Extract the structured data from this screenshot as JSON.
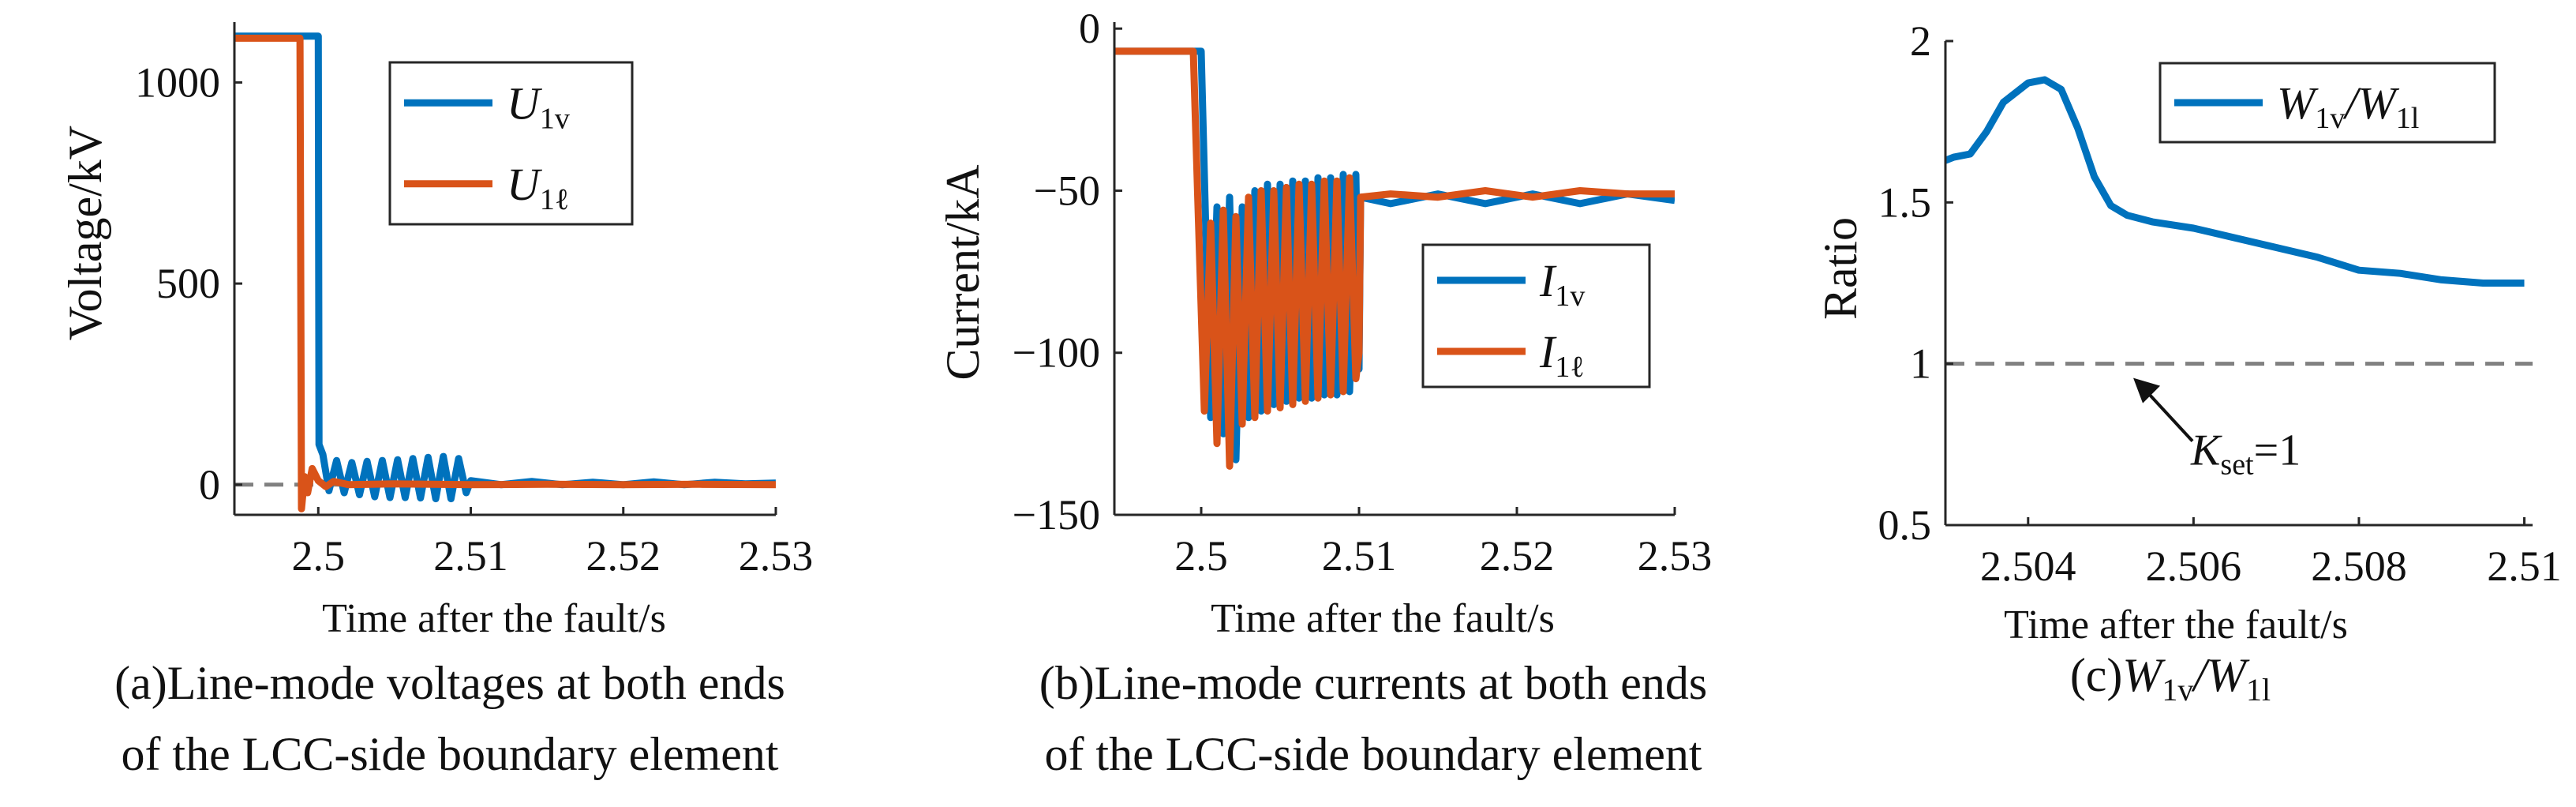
{
  "colors": {
    "blue": "#0072BD",
    "orange": "#D95319",
    "gray": "#808080",
    "axis": "#262626"
  },
  "chart_data": [
    {
      "type": "line",
      "panel": "a",
      "caption": [
        "(a)Line-mode voltages at both ends",
        "of the LCC-side boundary element"
      ],
      "xlabel": "Time after the fault/s",
      "ylabel": "Voltage/kV",
      "xlim": [
        2.4945,
        2.53
      ],
      "ylim": [
        -75,
        1150
      ],
      "xticks": [
        2.5,
        2.51,
        2.52,
        2.53
      ],
      "xtick_labels": [
        "2.5",
        "2.51",
        "2.52",
        "2.53"
      ],
      "yticks": [
        0,
        500,
        1000
      ],
      "ytick_labels": [
        "0",
        "500",
        "1000"
      ],
      "legend": {
        "position": "top-right",
        "entries": [
          {
            "base": "U",
            "sub": "1v"
          },
          {
            "base": "U",
            "sub": "1ℓ"
          }
        ]
      },
      "reference_line": {
        "y": 0,
        "style": "dashed"
      },
      "series": [
        {
          "color_key": "blue",
          "x": [
            2.4945,
            2.5,
            2.50005,
            2.5003,
            2.5007,
            2.5012,
            2.5017,
            2.5022,
            2.5027,
            2.5032,
            2.5037,
            2.5042,
            2.5047,
            2.5052,
            2.5057,
            2.5062,
            2.5067,
            2.5072,
            2.5077,
            2.5082,
            2.5087,
            2.5092,
            2.5097,
            2.51,
            2.512,
            2.514,
            2.516,
            2.518,
            2.52,
            2.522,
            2.524,
            2.526,
            2.528,
            2.53
          ],
          "y": [
            1115,
            1115,
            100,
            75,
            -15,
            60,
            -20,
            55,
            -25,
            58,
            -30,
            60,
            -32,
            62,
            -32,
            65,
            -33,
            68,
            -35,
            70,
            -35,
            65,
            -20,
            10,
            0,
            8,
            0,
            6,
            0,
            7,
            0,
            6,
            2,
            4
          ]
        },
        {
          "color_key": "orange",
          "x": [
            2.4945,
            2.4988,
            2.4989,
            2.4991,
            2.4993,
            2.4996,
            2.5,
            2.5005,
            2.501,
            2.502,
            2.505,
            2.51,
            2.515,
            2.52,
            2.525,
            2.53
          ],
          "y": [
            1110,
            1110,
            -60,
            20,
            -20,
            40,
            10,
            -5,
            8,
            0,
            2,
            0,
            1,
            0,
            1,
            0
          ]
        }
      ]
    },
    {
      "type": "line",
      "panel": "b",
      "caption": [
        "(b)Line-mode currents at both ends",
        "of the LCC-side boundary element"
      ],
      "xlabel": "Time after the fault/s",
      "ylabel": "Current/kA",
      "xlim": [
        2.4945,
        2.53
      ],
      "ylim": [
        -150,
        2
      ],
      "xticks": [
        2.5,
        2.51,
        2.52,
        2.53
      ],
      "xtick_labels": [
        "2.5",
        "2.51",
        "2.52",
        "2.53"
      ],
      "yticks": [
        -150,
        -100,
        -50,
        0
      ],
      "ytick_labels": [
        "−150",
        "−100",
        "−50",
        "0"
      ],
      "legend": {
        "position": "center-right",
        "entries": [
          {
            "base": "I",
            "sub": "1v"
          },
          {
            "base": "I",
            "sub": "1ℓ"
          }
        ]
      },
      "series": [
        {
          "color_key": "blue",
          "x": [
            2.4945,
            2.5,
            2.5002,
            2.5006,
            2.501,
            2.5014,
            2.5018,
            2.5022,
            2.5026,
            2.503,
            2.5034,
            2.5038,
            2.5042,
            2.5046,
            2.505,
            2.5054,
            2.5058,
            2.5062,
            2.5066,
            2.507,
            2.5074,
            2.5078,
            2.5082,
            2.5086,
            2.509,
            2.5094,
            2.5098,
            2.51,
            2.5101,
            2.512,
            2.515,
            2.518,
            2.521,
            2.524,
            2.527,
            2.53
          ],
          "y": [
            -7,
            -7,
            -45,
            -120,
            -55,
            -125,
            -52,
            -133,
            -55,
            -120,
            -50,
            -118,
            -48,
            -116,
            -48,
            -115,
            -47,
            -114,
            -47,
            -114,
            -46,
            -113,
            -46,
            -113,
            -45,
            -112,
            -45,
            -105,
            -52,
            -54,
            -51,
            -54,
            -51,
            -54,
            -51,
            -53
          ]
        },
        {
          "color_key": "orange",
          "x": [
            2.4945,
            2.4995,
            2.4998,
            2.5002,
            2.5006,
            2.501,
            2.5014,
            2.5018,
            2.5022,
            2.5026,
            2.503,
            2.5034,
            2.5038,
            2.5042,
            2.5046,
            2.505,
            2.5054,
            2.5058,
            2.5062,
            2.5066,
            2.507,
            2.5074,
            2.5078,
            2.5082,
            2.5086,
            2.509,
            2.5094,
            2.5098,
            2.51,
            2.5101,
            2.512,
            2.515,
            2.518,
            2.521,
            2.524,
            2.527,
            2.53
          ],
          "y": [
            -7,
            -7,
            -55,
            -118,
            -60,
            -128,
            -56,
            -135,
            -58,
            -122,
            -52,
            -120,
            -50,
            -118,
            -50,
            -117,
            -49,
            -116,
            -48,
            -115,
            -48,
            -114,
            -47,
            -113,
            -47,
            -112,
            -46,
            -108,
            -100,
            -52,
            -51,
            -52,
            -50,
            -52,
            -50,
            -51,
            -51
          ]
        }
      ]
    },
    {
      "type": "line",
      "panel": "c",
      "caption": [
        "(c)",
        "W",
        "1v",
        "/W",
        "1l"
      ],
      "xlabel": "Time after the fault/s",
      "ylabel": "Ratio",
      "xlim": [
        2.503,
        2.5101
      ],
      "ylim": [
        0.5,
        2
      ],
      "xticks": [
        2.504,
        2.506,
        2.508,
        2.51
      ],
      "xtick_labels": [
        "2.504",
        "2.506",
        "2.508",
        "2.51"
      ],
      "yticks": [
        0.5,
        1,
        1.5,
        2
      ],
      "ytick_labels": [
        "0.5",
        "1",
        "1.5",
        "2"
      ],
      "legend": {
        "position": "top-right",
        "entries": [
          {
            "parts": [
              "W",
              "1v",
              "/W",
              "1l"
            ]
          }
        ]
      },
      "reference_line": {
        "y": 1,
        "style": "dashed"
      },
      "annotation": {
        "base": "K",
        "sub": "set",
        "text": "=1",
        "arrow_to": [
          2.5051,
          1.0
        ]
      },
      "series": [
        {
          "color_key": "blue",
          "x": [
            2.503,
            2.5031,
            2.5033,
            2.5035,
            2.5037,
            2.504,
            2.5042,
            2.5044,
            2.5046,
            2.5048,
            2.505,
            2.5052,
            2.5055,
            2.506,
            2.5065,
            2.507,
            2.5075,
            2.508,
            2.5085,
            2.509,
            2.5095,
            2.51
          ],
          "y": [
            1.63,
            1.64,
            1.65,
            1.72,
            1.81,
            1.87,
            1.88,
            1.85,
            1.73,
            1.58,
            1.49,
            1.46,
            1.44,
            1.42,
            1.39,
            1.36,
            1.33,
            1.29,
            1.28,
            1.26,
            1.25,
            1.25
          ]
        }
      ]
    }
  ]
}
